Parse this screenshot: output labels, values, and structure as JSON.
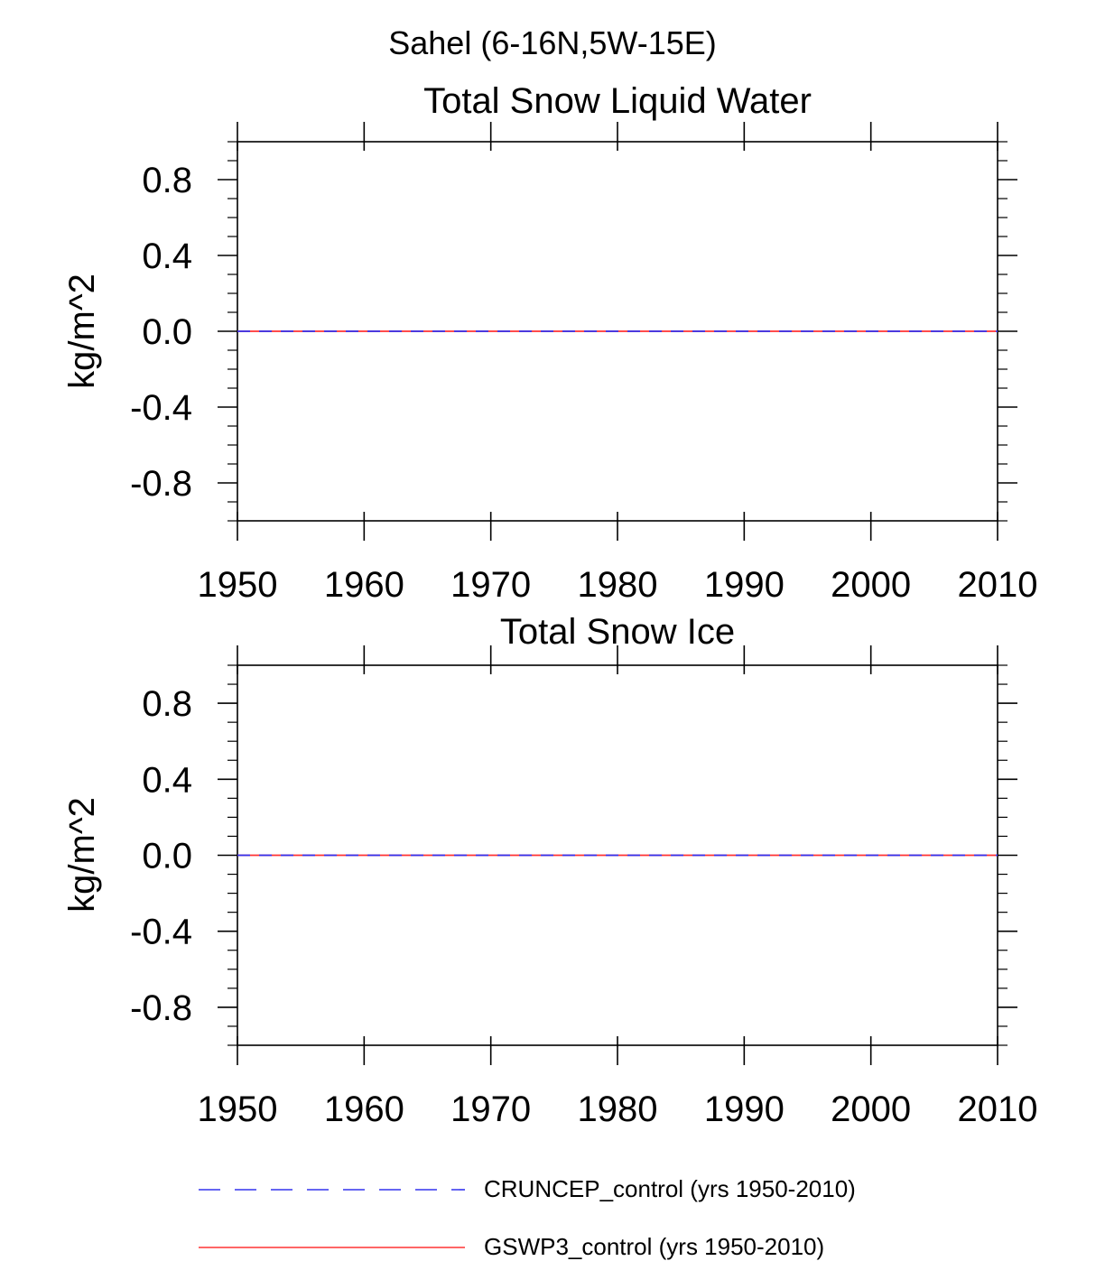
{
  "suptitle": "Sahel (6-16N,5W-15E)",
  "chart_data": [
    {
      "type": "line",
      "title": "Total Snow Liquid Water",
      "ylabel": "kg/m^2",
      "xlabel": "",
      "xlim": [
        1950,
        2010
      ],
      "ylim": [
        -1.0,
        1.0
      ],
      "x_ticks": [
        1950,
        1960,
        1970,
        1980,
        1990,
        2000,
        2010
      ],
      "y_ticks": [
        -0.8,
        -0.4,
        0.0,
        0.4,
        0.8
      ],
      "y_tick_labels": [
        "-0.8",
        "-0.4",
        "0.0",
        "0.4",
        "0.8"
      ],
      "series": [
        {
          "name": "CRUNCEP_control (yrs 1950-2010)",
          "color": "#3333ee",
          "dash": "dashed",
          "x": [
            1950,
            2010
          ],
          "values": [
            0.0,
            0.0
          ]
        },
        {
          "name": "GSWP3_control (yrs 1950-2010)",
          "color": "#ff3333",
          "dash": "solid",
          "x": [
            1950,
            2010
          ],
          "values": [
            0.0,
            0.0
          ]
        }
      ]
    },
    {
      "type": "line",
      "title": "Total Snow Ice",
      "ylabel": "kg/m^2",
      "xlabel": "",
      "xlim": [
        1950,
        2010
      ],
      "ylim": [
        -1.0,
        1.0
      ],
      "x_ticks": [
        1950,
        1960,
        1970,
        1980,
        1990,
        2000,
        2010
      ],
      "y_ticks": [
        -0.8,
        -0.4,
        0.0,
        0.4,
        0.8
      ],
      "y_tick_labels": [
        "-0.8",
        "-0.4",
        "0.0",
        "0.4",
        "0.8"
      ],
      "series": [
        {
          "name": "CRUNCEP_control (yrs 1950-2010)",
          "color": "#3333ee",
          "dash": "dashed",
          "x": [
            1950,
            2010
          ],
          "values": [
            0.0,
            0.0
          ]
        },
        {
          "name": "GSWP3_control (yrs 1950-2010)",
          "color": "#ff3333",
          "dash": "solid",
          "x": [
            1950,
            2010
          ],
          "values": [
            0.0,
            0.0
          ]
        }
      ]
    }
  ],
  "legend": [
    {
      "label": "CRUNCEP_control (yrs 1950-2010)",
      "color": "#3333ee",
      "dash": "dashed"
    },
    {
      "label": "GSWP3_control (yrs 1950-2010)",
      "color": "#ff3333",
      "dash": "solid"
    }
  ]
}
